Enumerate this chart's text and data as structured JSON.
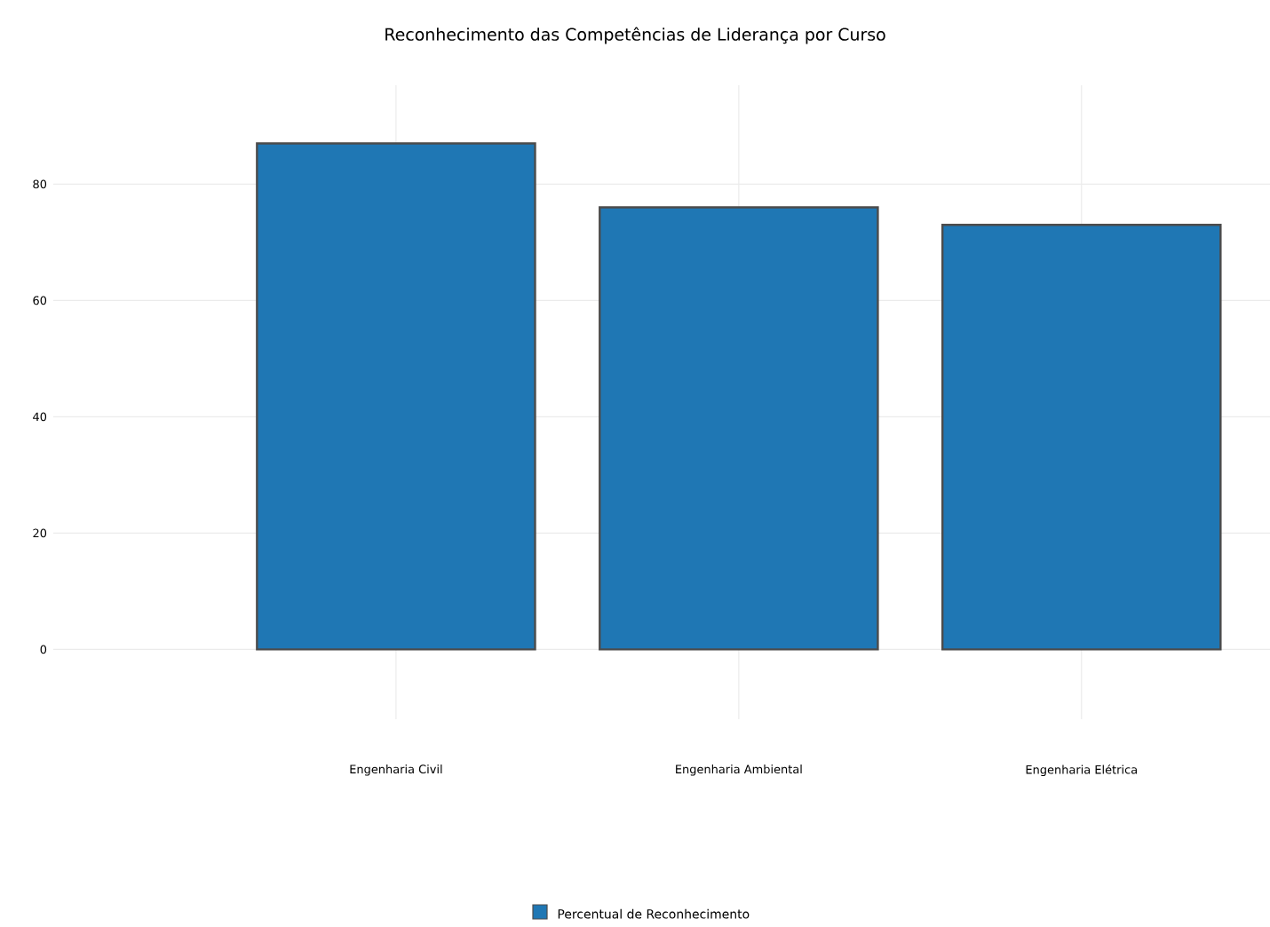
{
  "chart_data": {
    "type": "bar",
    "title": "Reconhecimento das Competências de Liderança por Curso",
    "categories": [
      "Engenharia Civil",
      "Engenharia Ambiental",
      "Engenharia Elétrica"
    ],
    "series": [
      {
        "name": "Percentual de Reconhecimento",
        "color": "#1f77b4",
        "values": [
          87,
          76,
          73
        ]
      }
    ],
    "ylim": [
      -12,
      97
    ],
    "yticks": [
      0,
      20,
      40,
      60,
      80
    ],
    "grid": true,
    "legend": "bottom"
  }
}
